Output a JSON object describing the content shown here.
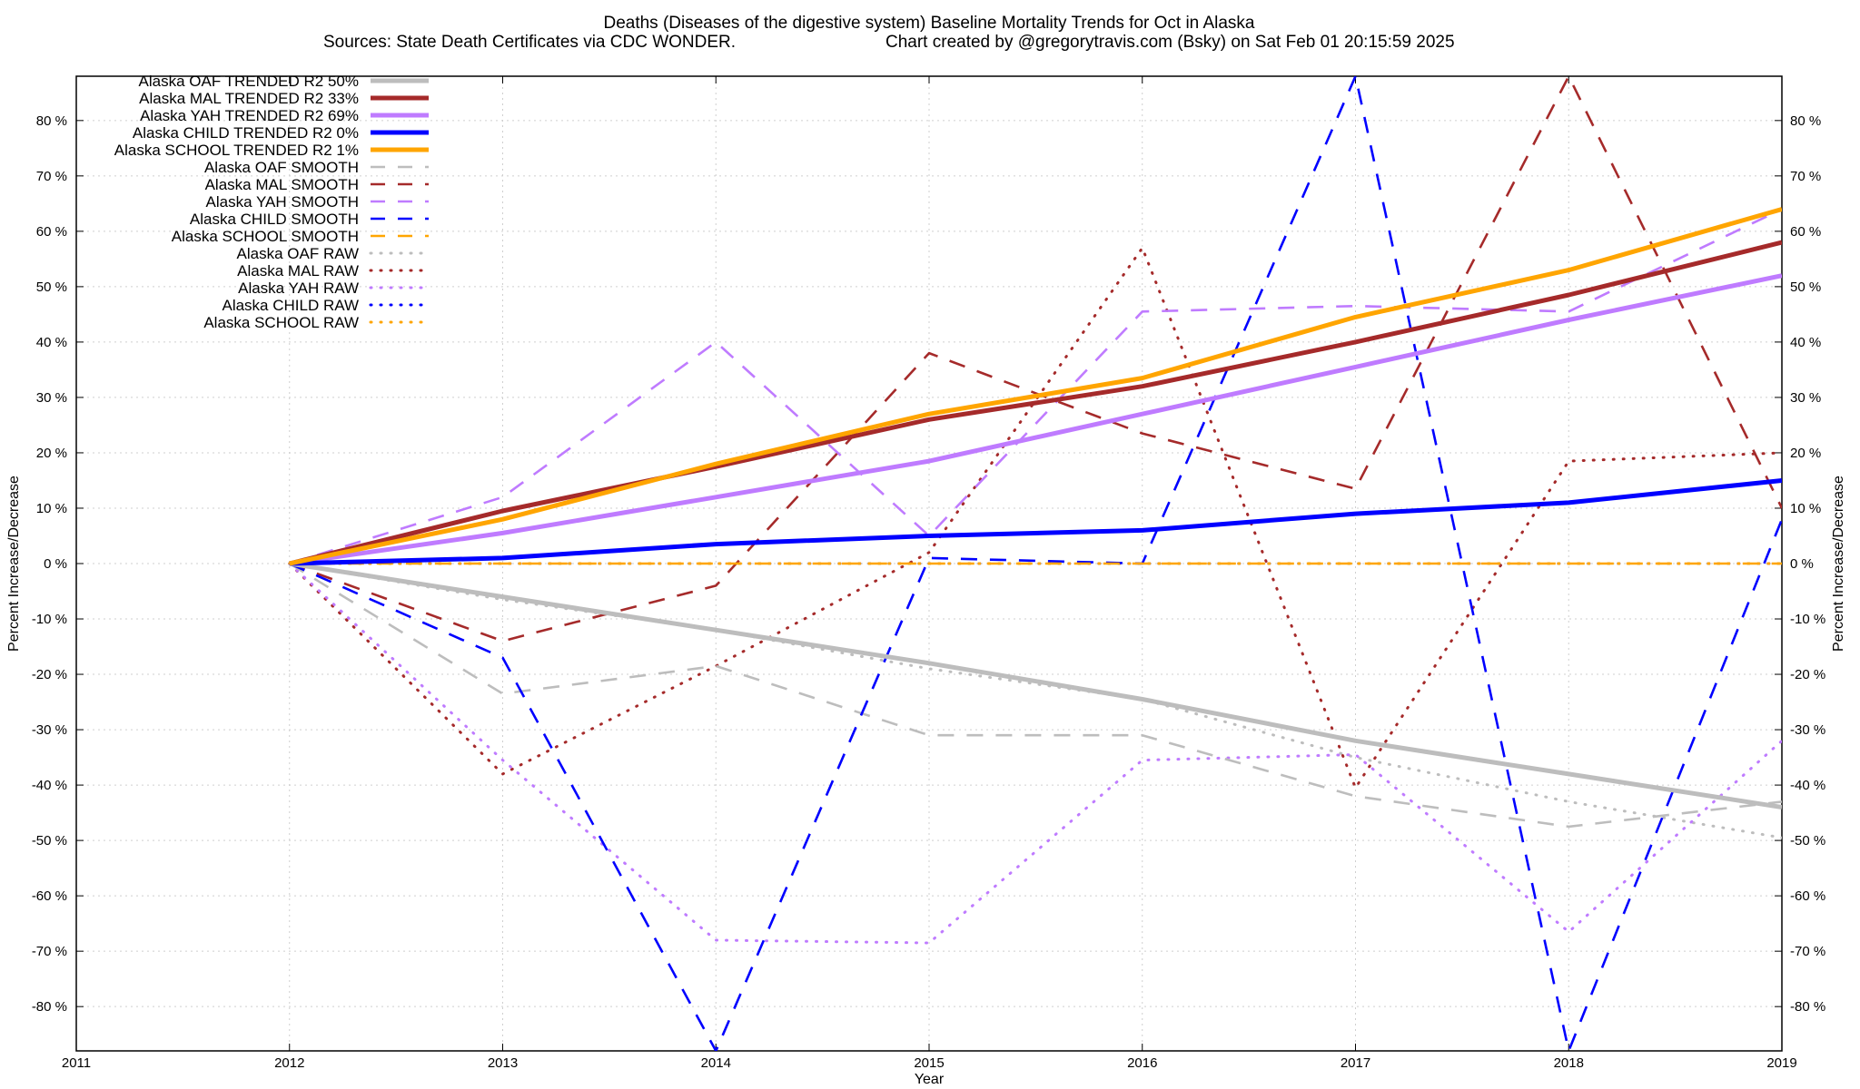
{
  "chart_data": {
    "type": "line",
    "title": "Deaths (Diseases of the digestive system)  Baseline Mortality Trends for Oct in Alaska",
    "subtitle_left": "Sources: State Death Certificates via CDC WONDER.",
    "subtitle_right": "Chart created by @gregorytravis.com (Bsky) on Sat Feb 01 20:15:59 2025",
    "xlabel": "Year",
    "ylabel_left": "Percent Increase/Decrease",
    "ylabel_right": "Percent Increase/Decrease",
    "xlim": [
      2011,
      2019
    ],
    "ylim": [
      -88,
      88
    ],
    "x_ticks": [
      "2011",
      "2012",
      "2013",
      "2014",
      "2015",
      "2016",
      "2017",
      "2018",
      "2019"
    ],
    "y_ticks": [
      {
        "v": 80,
        "label": "80 %"
      },
      {
        "v": 70,
        "label": "70 %"
      },
      {
        "v": 60,
        "label": "60 %"
      },
      {
        "v": 50,
        "label": "50 %"
      },
      {
        "v": 40,
        "label": "40 %"
      },
      {
        "v": 30,
        "label": "30 %"
      },
      {
        "v": 20,
        "label": "20 %"
      },
      {
        "v": 10,
        "label": "10 %"
      },
      {
        "v": 0,
        "label": "0 %"
      },
      {
        "v": -10,
        "label": "-10 %"
      },
      {
        "v": -20,
        "label": "-20 %"
      },
      {
        "v": -30,
        "label": "-30 %"
      },
      {
        "v": -40,
        "label": "-40 %"
      },
      {
        "v": -50,
        "label": "-50 %"
      },
      {
        "v": -60,
        "label": "-60 %"
      },
      {
        "v": -70,
        "label": "-70 %"
      },
      {
        "v": -80,
        "label": "-80 %"
      }
    ],
    "grid": true,
    "legend_position": "top-left",
    "x": [
      2012,
      2013,
      2014,
      2015,
      2016,
      2017,
      2018,
      2019
    ],
    "series": [
      {
        "name": "Alaska OAF TRENDED R2  50%",
        "color": "#bdbdbd",
        "style": "solid",
        "values": [
          0,
          -6,
          -12,
          -18,
          -24.5,
          -32,
          -38,
          -44
        ]
      },
      {
        "name": "Alaska MAL TRENDED R2  33%",
        "color": "#a52a2a",
        "style": "solid",
        "values": [
          0,
          9.5,
          17.5,
          26,
          32,
          40,
          48.5,
          58
        ]
      },
      {
        "name": "Alaska YAH TRENDED R2  69%",
        "color": "#bf7bff",
        "style": "solid",
        "values": [
          0,
          5.5,
          12,
          18.5,
          27,
          35.5,
          44,
          52
        ]
      },
      {
        "name": "Alaska CHILD TRENDED R2   0%",
        "color": "#0000ff",
        "style": "solid",
        "values": [
          0,
          1,
          3.5,
          5,
          6,
          9,
          11,
          15
        ]
      },
      {
        "name": "Alaska SCHOOL TRENDED R2   1%",
        "color": "#ffa500",
        "style": "solid",
        "values": [
          0,
          8,
          18,
          27,
          33.5,
          44.5,
          53,
          64
        ]
      },
      {
        "name": "Alaska OAF SMOOTH",
        "color": "#bdbdbd",
        "style": "dashed",
        "values": [
          0,
          -23.5,
          -18.5,
          -31,
          -31,
          -42,
          -47.5,
          -43
        ]
      },
      {
        "name": "Alaska MAL SMOOTH",
        "color": "#a52a2a",
        "style": "dashed",
        "values": [
          0,
          -14,
          -4,
          38,
          23.5,
          13.5,
          88,
          10
        ]
      },
      {
        "name": "Alaska YAH SMOOTH",
        "color": "#bf7bff",
        "style": "dashed",
        "values": [
          0,
          12,
          40,
          5,
          45.5,
          46.5,
          45.5,
          64
        ]
      },
      {
        "name": "Alaska CHILD SMOOTH",
        "color": "#0000ff",
        "style": "dashed",
        "values": [
          0,
          -17,
          -88,
          1,
          0,
          88,
          -88,
          8
        ]
      },
      {
        "name": "Alaska SCHOOL SMOOTH",
        "color": "#ffa500",
        "style": "dashed",
        "values": [
          0,
          0,
          0,
          0,
          0,
          0,
          0,
          0
        ]
      },
      {
        "name": "Alaska OAF RAW",
        "color": "#bdbdbd",
        "style": "dotted",
        "values": [
          0,
          -6.5,
          -12,
          -19,
          -24.5,
          -35,
          -43,
          -49.5
        ]
      },
      {
        "name": "Alaska MAL RAW",
        "color": "#a52a2a",
        "style": "dotted",
        "values": [
          0,
          -38,
          -18.5,
          2,
          57,
          -40.5,
          18.5,
          20
        ]
      },
      {
        "name": "Alaska YAH RAW",
        "color": "#bf7bff",
        "style": "dotted",
        "values": [
          0,
          -35.5,
          -68,
          -68.5,
          -35.5,
          -34.5,
          -66.5,
          -32
        ]
      },
      {
        "name": "Alaska CHILD RAW",
        "color": "#0000ff",
        "style": "dotted",
        "values": [
          0,
          0,
          0,
          0,
          0,
          0,
          0,
          0
        ]
      },
      {
        "name": "Alaska SCHOOL RAW",
        "color": "#ffa500",
        "style": "dotted",
        "values": [
          0,
          0,
          0,
          0,
          0,
          0,
          0,
          0
        ]
      }
    ]
  }
}
